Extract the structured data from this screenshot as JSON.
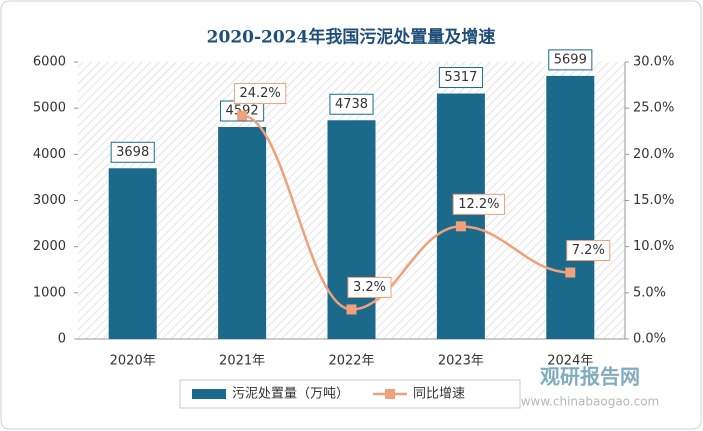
{
  "chart_data": {
    "type": "bar-line",
    "title": "2020-2024年我国污泥处置量及增速",
    "categories": [
      "2020年",
      "2021年",
      "2022年",
      "2023年",
      "2024年"
    ],
    "series": [
      {
        "name": "污泥处置量（万吨）",
        "type": "bar",
        "color": "#1b6a8c",
        "values": [
          3698,
          4592,
          4738,
          5317,
          5699
        ]
      },
      {
        "name": "同比增速",
        "type": "line",
        "axis": "y2",
        "color": "#f0a07a",
        "values": [
          null,
          24.2,
          3.2,
          12.2,
          7.2
        ],
        "value_labels": [
          null,
          "24.2%",
          "3.2%",
          "12.2%",
          "7.2%"
        ]
      }
    ],
    "ylim": [
      0,
      6000
    ],
    "yticks": [
      0,
      1000,
      2000,
      3000,
      4000,
      5000,
      6000
    ],
    "y2lim": [
      0,
      30
    ],
    "y2ticks": [
      {
        "value": 0,
        "label": "0.0%"
      },
      {
        "value": 5,
        "label": "5.0%"
      },
      {
        "value": 10,
        "label": "10.0%"
      },
      {
        "value": 15,
        "label": "15.0%"
      },
      {
        "value": 20,
        "label": "20.0%"
      },
      {
        "value": 25,
        "label": "25.0%"
      },
      {
        "value": 30,
        "label": "30.0%"
      }
    ],
    "legend": "bottom",
    "watermark": [
      "观研报告网",
      "www.chinabaogao.com"
    ]
  }
}
